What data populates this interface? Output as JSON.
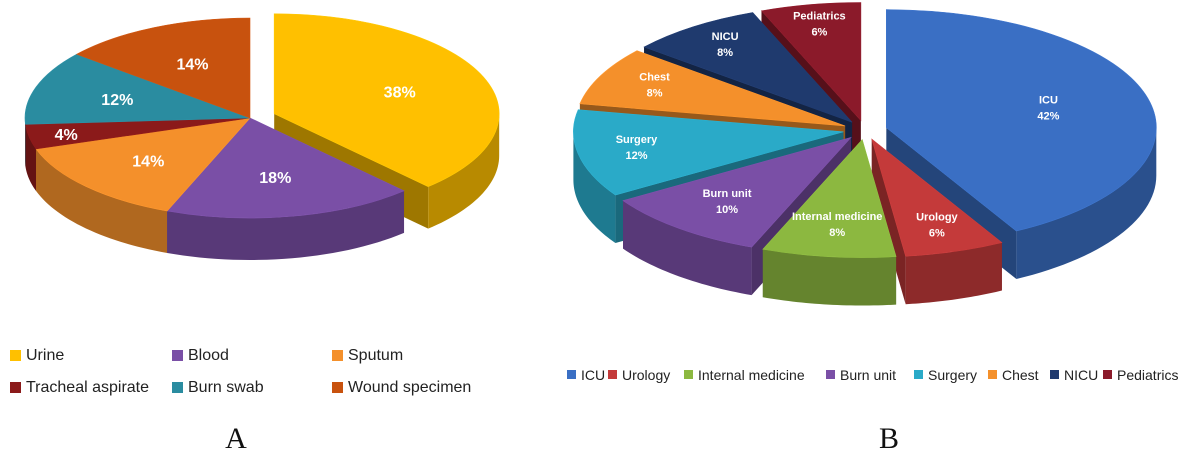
{
  "chart_data": [
    {
      "type": "pie",
      "panel_label": "A",
      "categories": [
        "Urine",
        "Blood",
        "Sputum",
        "Tracheal aspirate",
        "Burn swab",
        "Wound specimen"
      ],
      "values": [
        38,
        18,
        14,
        4,
        12,
        14
      ],
      "value_labels": [
        "38%",
        "18%",
        "14%",
        "4%",
        "12%",
        "14%"
      ],
      "colors": [
        "#FFC000",
        "#7A4FA6",
        "#F4902B",
        "#8B1A1A",
        "#2A8CA0",
        "#C8520E"
      ],
      "exploded": [
        "Urine"
      ],
      "legend": {
        "position": "bottom",
        "columns": 3
      }
    },
    {
      "type": "pie",
      "panel_label": "B",
      "categories": [
        "ICU",
        "Urology",
        "Internal medicine",
        "Burn unit",
        "Surgery",
        "Chest",
        "NICU",
        "Pediatrics"
      ],
      "values": [
        42,
        6,
        8,
        10,
        12,
        8,
        8,
        6
      ],
      "value_labels": [
        "42%",
        "6%",
        "8%",
        "10%",
        "12%",
        "8%",
        "8%",
        "6%"
      ],
      "colors": [
        "#3A6FC4",
        "#C43A3A",
        "#8CB840",
        "#7A4FA6",
        "#2AAAC8",
        "#F4902B",
        "#1F3A6E",
        "#8B1A2A"
      ],
      "exploded": [
        "ICU",
        "Urology",
        "Internal medicine",
        "Burn unit",
        "Surgery",
        "Chest",
        "NICU",
        "Pediatrics"
      ],
      "legend": {
        "position": "bottom",
        "columns": 8
      }
    }
  ]
}
